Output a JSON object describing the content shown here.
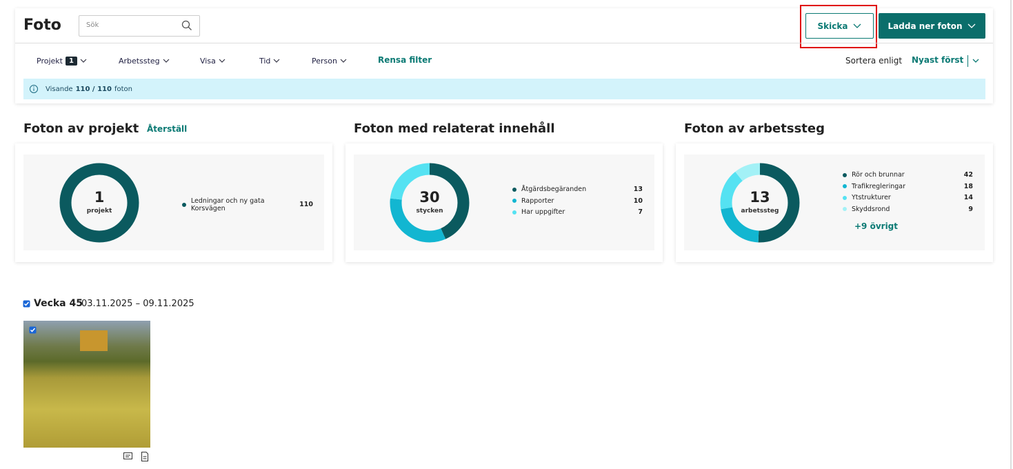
{
  "header": {
    "title": "Foto",
    "search_placeholder": "Sök",
    "send_button": "Skicka",
    "download_button": "Ladda ner foton"
  },
  "filters": {
    "items": [
      {
        "label": "Projekt",
        "badge": 1
      },
      {
        "label": "Arbetssteg"
      },
      {
        "label": "Visa"
      },
      {
        "label": "Tid"
      },
      {
        "label": "Person"
      }
    ],
    "clear": "Rensa filter",
    "sort_label": "Sortera enligt",
    "sort_value": "Nyast först"
  },
  "info": {
    "prefix": "Visande",
    "count": "110 / 110",
    "suffix": "foton"
  },
  "charts": [
    {
      "type": "donut",
      "title": "Foton av projekt",
      "action": "Återställ",
      "center_value": 1,
      "center_label": "projekt",
      "series": [
        {
          "name": "Ledningar och ny gata Korsvägen",
          "value": 110,
          "color": "#0b5a5f"
        }
      ]
    },
    {
      "type": "donut",
      "title": "Foton med relaterat innehåll",
      "center_value": 30,
      "center_label": "stycken",
      "series": [
        {
          "name": "Åtgärdsbegäranden",
          "value": 13,
          "color": "#0b5a5f"
        },
        {
          "name": "Rapporter",
          "value": 10,
          "color": "#12b6d1"
        },
        {
          "name": "Har uppgifter",
          "value": 7,
          "color": "#55e2f2"
        }
      ]
    },
    {
      "type": "donut",
      "title": "Foton av arbetssteg",
      "center_value": 13,
      "center_label": "arbetssteg",
      "series": [
        {
          "name": "Rör och brunnar",
          "value": 42,
          "color": "#0b5a5f"
        },
        {
          "name": "Trafikregleringar",
          "value": 18,
          "color": "#12b6d1"
        },
        {
          "name": "Ytstrukturer",
          "value": 14,
          "color": "#55e2f2"
        },
        {
          "name": "Skyddsrond",
          "value": 9,
          "color": "#a3f1f6"
        }
      ],
      "more": "+9 övrigt"
    }
  ],
  "week": {
    "label": "Vecka 45",
    "dates": "03.11.2025 – 09.11.2025"
  }
}
